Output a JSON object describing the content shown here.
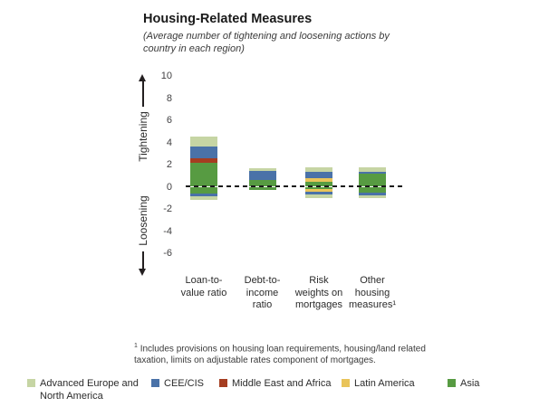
{
  "header": {
    "title": "Housing-Related Measures",
    "subtitle_lines": [
      "(Average number of tightening and loosening actions by",
      "country in each region)"
    ]
  },
  "axis": {
    "tightening_label": "Tightening",
    "loosening_label": "Loosening"
  },
  "chart_data": {
    "type": "bar",
    "stacked": true,
    "title": "Housing-Related Measures",
    "subtitle": "(Average number of tightening and loosening actions by country in each region)",
    "ylim": [
      -6,
      10
    ],
    "yticks": [
      10,
      8,
      6,
      4,
      2,
      0,
      -2,
      -4,
      -6
    ],
    "grid": false,
    "zero_line": "dashed",
    "legend_position": "bottom",
    "direction_labels": {
      "positive": "Tightening",
      "negative": "Loosening"
    },
    "regions": [
      {
        "id": "advanced",
        "label": "Advanced Europe and North America",
        "color": "#c6d5a4"
      },
      {
        "id": "cee",
        "label": "CEE/CIS",
        "color": "#4a72a8"
      },
      {
        "id": "mea",
        "label": "Middle East and Africa",
        "color": "#a53d21"
      },
      {
        "id": "latam",
        "label": "Latin America",
        "color": "#e9c45a"
      },
      {
        "id": "asia",
        "label": "Asia",
        "color": "#579b42"
      }
    ],
    "categories": [
      "Loan-to-value ratio",
      "Debt-to-income ratio",
      "Risk weights on mortgages",
      "Other housing measures¹"
    ],
    "bars": [
      {
        "category": "Loan-to-value ratio",
        "label_lines": [
          "Loan-to-",
          "value ratio"
        ],
        "tightening": [
          {
            "region": "asia",
            "value": 2.2
          },
          {
            "region": "mea",
            "value": 0.35
          },
          {
            "region": "cee",
            "value": 1.05
          },
          {
            "region": "advanced",
            "value": 0.9
          }
        ],
        "loosening": [
          {
            "region": "asia",
            "value": 0.6
          },
          {
            "region": "cee",
            "value": 0.25
          },
          {
            "region": "advanced",
            "value": 0.35
          }
        ]
      },
      {
        "category": "Debt-to-income ratio",
        "label_lines": [
          "Debt-to-",
          "income",
          "ratio"
        ],
        "tightening": [
          {
            "region": "asia",
            "value": 0.6
          },
          {
            "region": "cee",
            "value": 0.8
          },
          {
            "region": "advanced",
            "value": 0.25
          }
        ],
        "loosening": [
          {
            "region": "asia",
            "value": 0.3
          }
        ]
      },
      {
        "category": "Risk weights on mortgages",
        "label_lines": [
          "Risk",
          "weights on",
          "mortgages"
        ],
        "tightening": [
          {
            "region": "asia",
            "value": 0.45
          },
          {
            "region": "latam",
            "value": 0.35
          },
          {
            "region": "cee",
            "value": 0.55
          },
          {
            "region": "advanced",
            "value": 0.4
          }
        ],
        "loosening": [
          {
            "region": "asia",
            "value": 0.2
          },
          {
            "region": "latam",
            "value": 0.25
          },
          {
            "region": "cee",
            "value": 0.25
          },
          {
            "region": "advanced",
            "value": 0.3
          }
        ]
      },
      {
        "category": "Other housing measures¹",
        "label_lines": [
          "Other",
          "housing",
          "measures¹"
        ],
        "tightening": [
          {
            "region": "asia",
            "value": 1.2
          },
          {
            "region": "cee",
            "value": 0.15
          },
          {
            "region": "advanced",
            "value": 0.4
          }
        ],
        "loosening": [
          {
            "region": "asia",
            "value": 0.5
          },
          {
            "region": "cee",
            "value": 0.25
          },
          {
            "region": "advanced",
            "value": 0.25
          }
        ]
      }
    ]
  },
  "footnote": {
    "marker": "1",
    "lines": [
      "Includes provisions on housing loan requirements, housing/land related",
      "taxation, limits on adjustable rates component of mortgages."
    ]
  }
}
